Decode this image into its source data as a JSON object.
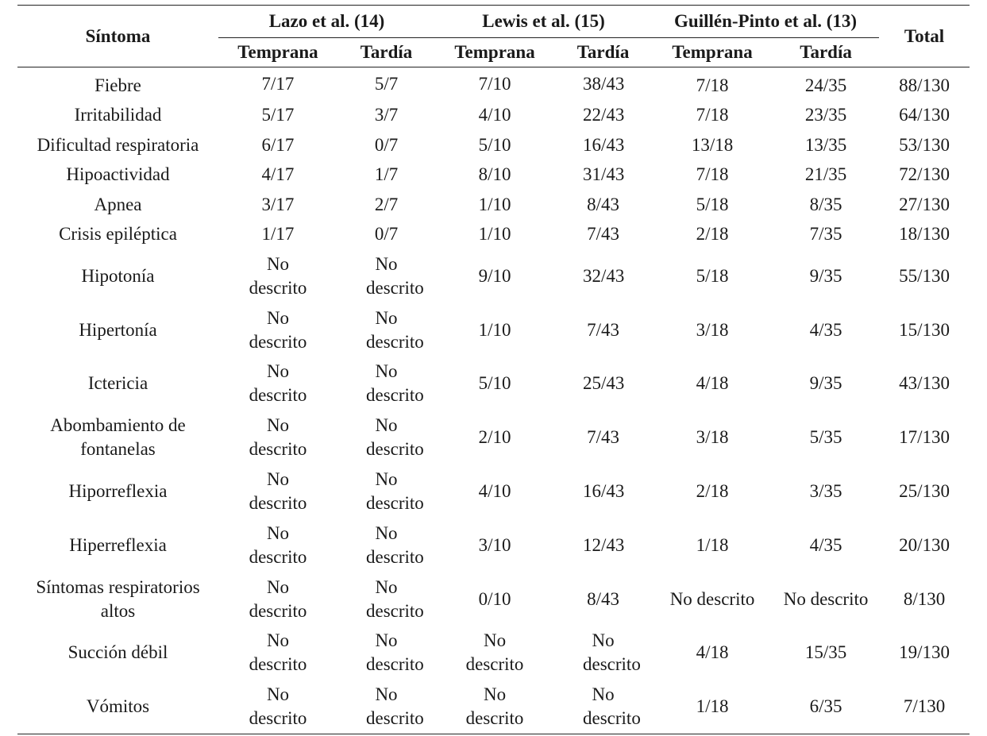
{
  "table": {
    "header": {
      "symptom": "Síntoma",
      "total": "Total",
      "groups": [
        "Lazo et al. (14)",
        "Lewis et al. (15)",
        "Guillén-Pinto et al. (13)"
      ],
      "sub": [
        "Temprana",
        "Tardía",
        "Temprana",
        "Tardía",
        "Temprana",
        "Tardía"
      ]
    },
    "rows": [
      {
        "symptom": "Fiebre",
        "cells": [
          "7/17",
          "5/7",
          "7/10",
          "38/43",
          "7/18",
          "24/35",
          "88/130"
        ]
      },
      {
        "symptom": "Irritabilidad",
        "cells": [
          "5/17",
          "3/7",
          "4/10",
          "22/43",
          "7/18",
          "23/35",
          "64/130"
        ]
      },
      {
        "symptom": "Dificultad respiratoria",
        "cells": [
          "6/17",
          "0/7",
          "5/10",
          "16/43",
          "13/18",
          "13/35",
          "53/130"
        ]
      },
      {
        "symptom": "Hipoactividad",
        "cells": [
          "4/17",
          "1/7",
          "8/10",
          "31/43",
          "7/18",
          "21/35",
          "72/130"
        ]
      },
      {
        "symptom": "Apnea",
        "cells": [
          "3/17",
          "2/7",
          "1/10",
          "8/43",
          "5/18",
          "8/35",
          "27/130"
        ]
      },
      {
        "symptom": "Crisis epiléptica",
        "cells": [
          "1/17",
          "0/7",
          "1/10",
          "7/43",
          "2/18",
          "7/35",
          "18/130"
        ]
      },
      {
        "symptom": "Hipotonía",
        "cells": [
          "No descrito",
          "No descrito",
          "9/10",
          "32/43",
          "5/18",
          "9/35",
          "55/130"
        ]
      },
      {
        "symptom": "Hipertonía",
        "cells": [
          "No descrito",
          "No descrito",
          "1/10",
          "7/43",
          "3/18",
          "4/35",
          "15/130"
        ]
      },
      {
        "symptom": "Ictericia",
        "cells": [
          "No descrito",
          "No descrito",
          "5/10",
          "25/43",
          "4/18",
          "9/35",
          "43/130"
        ]
      },
      {
        "symptom": "Abombamiento de fontanelas",
        "cells": [
          "No descrito",
          "No descrito",
          "2/10",
          "7/43",
          "3/18",
          "5/35",
          "17/130"
        ]
      },
      {
        "symptom": "Hiporreflexia",
        "cells": [
          "No descrito",
          "No descrito",
          "4/10",
          "16/43",
          "2/18",
          "3/35",
          "25/130"
        ]
      },
      {
        "symptom": "Hiperreflexia",
        "cells": [
          "No descrito",
          "No descrito",
          "3/10",
          "12/43",
          "1/18",
          "4/35",
          "20/130"
        ]
      },
      {
        "symptom": "Síntomas respiratorios altos",
        "cells": [
          "No descrito",
          "No descrito",
          "0/10",
          "8/43",
          "No descrito",
          "No descrito",
          "8/130"
        ]
      },
      {
        "symptom": "Succión débil",
        "cells": [
          "No descrito",
          "No descrito",
          "No descrito",
          "No descrito",
          "4/18",
          "15/35",
          "19/130"
        ]
      },
      {
        "symptom": "Vómitos",
        "cells": [
          "No descrito",
          "No descrito",
          "No descrito",
          "No descrito",
          "1/18",
          "6/35",
          "7/130"
        ]
      }
    ]
  }
}
